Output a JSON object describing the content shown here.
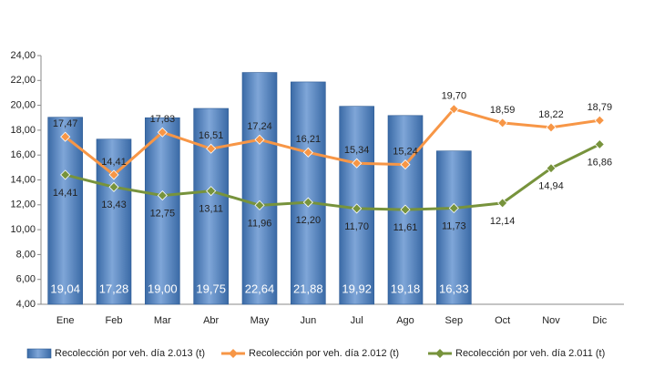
{
  "chart_data": {
    "type": "bar",
    "categories": [
      "Ene",
      "Feb",
      "Mar",
      "Abr",
      "May",
      "Jun",
      "Jul",
      "Ago",
      "Sep",
      "Oct",
      "Nov",
      "Dic"
    ],
    "ylim": [
      4,
      24
    ],
    "yticks": [
      {
        "value": 4,
        "label": "4,00"
      },
      {
        "value": 6,
        "label": "6,00"
      },
      {
        "value": 8,
        "label": "8,00"
      },
      {
        "value": 10,
        "label": "10,00"
      },
      {
        "value": 12,
        "label": "12,00"
      },
      {
        "value": 14,
        "label": "14,00"
      },
      {
        "value": 16,
        "label": "16,00"
      },
      {
        "value": 18,
        "label": "18,00"
      },
      {
        "value": 20,
        "label": "20,00"
      },
      {
        "value": 22,
        "label": "22,00"
      },
      {
        "value": 24,
        "label": "24,00"
      }
    ],
    "grid": false,
    "legend": "bottom",
    "series": [
      {
        "name": "Recolección por veh. día 2.013 (t)",
        "type": "bar",
        "color": "#4f81bd",
        "values": [
          19.04,
          17.28,
          19.0,
          19.75,
          22.64,
          21.88,
          19.92,
          19.18,
          16.33,
          null,
          null,
          null
        ],
        "value_labels": [
          "19,04",
          "17,28",
          "19,00",
          "19,75",
          "22,64",
          "21,88",
          "19,92",
          "19,18",
          "16,33",
          null,
          null,
          null
        ]
      },
      {
        "name": "Recolección por veh. día 2.012 (t)",
        "type": "line",
        "color": "#f79646",
        "values": [
          17.47,
          14.41,
          17.83,
          16.51,
          17.24,
          16.21,
          15.34,
          15.24,
          19.7,
          18.59,
          18.22,
          18.79
        ],
        "value_labels": [
          "17,47",
          "14,41",
          "17,83",
          "16,51",
          "17,24",
          "16,21",
          "15,34",
          "15,24",
          "19,70",
          "18,59",
          "18,22",
          "18,79"
        ]
      },
      {
        "name": "Recolección por veh. día 2.011 (t)",
        "type": "line",
        "color": "#77933c",
        "values": [
          14.41,
          13.43,
          12.75,
          13.11,
          11.96,
          12.2,
          11.7,
          11.61,
          11.73,
          12.14,
          14.94,
          16.86
        ],
        "value_labels": [
          "14,41",
          "13,43",
          "12,75",
          "13,11",
          "11,96",
          "12,20",
          "11,70",
          "11,61",
          "11,73",
          "12,14",
          "14,94",
          "16,86"
        ]
      }
    ]
  }
}
